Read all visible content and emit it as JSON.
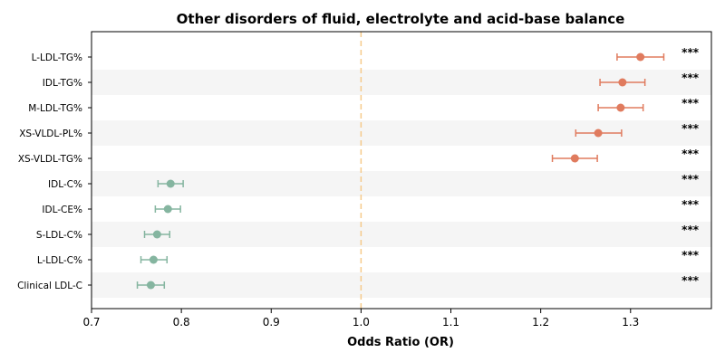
{
  "chart_data": {
    "type": "forest",
    "title": "Other disorders of fluid, electrolyte and acid-base balance",
    "xlabel": "Odds Ratio (OR)",
    "xlim": [
      0.7,
      1.39
    ],
    "xticks": [
      "0.7",
      "0.8",
      "0.9",
      "1.0",
      "1.1",
      "1.2",
      "1.3"
    ],
    "reference_line": 1.0,
    "colors": {
      "positive": "#e07b5e",
      "negative": "#85b5a0",
      "reference": "#f5c98a",
      "band": "#f5f5f5"
    },
    "rows": [
      {
        "label": "L-LDL-TG%",
        "or": 1.311,
        "lower": 1.285,
        "upper": 1.337,
        "sig": "***"
      },
      {
        "label": "IDL-TG%",
        "or": 1.291,
        "lower": 1.266,
        "upper": 1.316,
        "sig": "***"
      },
      {
        "label": "M-LDL-TG%",
        "or": 1.289,
        "lower": 1.264,
        "upper": 1.314,
        "sig": "***"
      },
      {
        "label": "XS-VLDL-PL%",
        "or": 1.264,
        "lower": 1.239,
        "upper": 1.29,
        "sig": "***"
      },
      {
        "label": "XS-VLDL-TG%",
        "or": 1.238,
        "lower": 1.213,
        "upper": 1.263,
        "sig": "***"
      },
      {
        "label": "IDL-C%",
        "or": 0.788,
        "lower": 0.774,
        "upper": 0.802,
        "sig": "***"
      },
      {
        "label": "IDL-CE%",
        "or": 0.785,
        "lower": 0.771,
        "upper": 0.799,
        "sig": "***"
      },
      {
        "label": "S-LDL-C%",
        "or": 0.773,
        "lower": 0.759,
        "upper": 0.787,
        "sig": "***"
      },
      {
        "label": "L-LDL-C%",
        "or": 0.769,
        "lower": 0.755,
        "upper": 0.784,
        "sig": "***"
      },
      {
        "label": "Clinical LDL-C",
        "or": 0.766,
        "lower": 0.751,
        "upper": 0.781,
        "sig": "***"
      }
    ]
  }
}
